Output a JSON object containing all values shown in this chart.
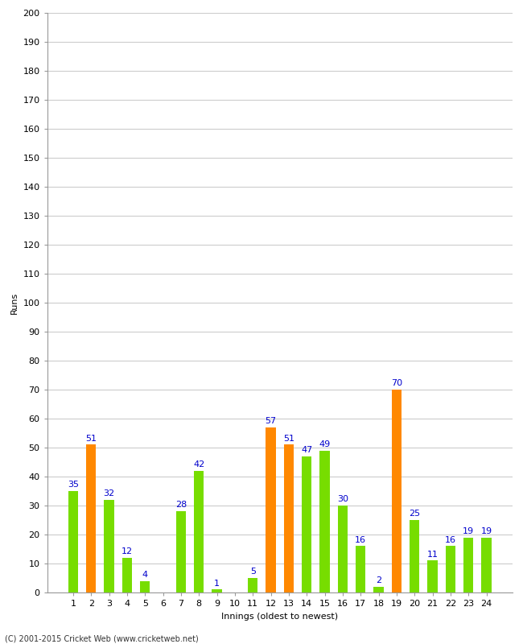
{
  "xlabel": "Innings (oldest to newest)",
  "ylabel": "Runs",
  "footer": "(C) 2001-2015 Cricket Web (www.cricketweb.net)",
  "ylim": [
    0,
    200
  ],
  "yticks": [
    0,
    10,
    20,
    30,
    40,
    50,
    60,
    70,
    80,
    90,
    100,
    110,
    120,
    130,
    140,
    150,
    160,
    170,
    180,
    190,
    200
  ],
  "innings": [
    1,
    2,
    3,
    4,
    5,
    6,
    7,
    8,
    9,
    10,
    11,
    12,
    13,
    14,
    15,
    16,
    17,
    18,
    19,
    20,
    21,
    22,
    23,
    24
  ],
  "values": [
    35,
    51,
    32,
    12,
    4,
    0,
    28,
    42,
    1,
    0,
    5,
    57,
    51,
    47,
    49,
    30,
    16,
    2,
    70,
    25,
    11,
    16,
    19,
    19
  ],
  "colors": [
    "#77dd00",
    "#ff8800",
    "#77dd00",
    "#77dd00",
    "#77dd00",
    "#77dd00",
    "#77dd00",
    "#77dd00",
    "#77dd00",
    "#77dd00",
    "#77dd00",
    "#ff8800",
    "#ff8800",
    "#77dd00",
    "#77dd00",
    "#77dd00",
    "#77dd00",
    "#77dd00",
    "#ff8800",
    "#77dd00",
    "#77dd00",
    "#77dd00",
    "#77dd00",
    "#77dd00"
  ],
  "label_color": "#0000cc",
  "background_color": "#ffffff",
  "grid_color": "#cccccc",
  "axis_fontsize": 8,
  "label_fontsize": 8,
  "footer_fontsize": 7,
  "bar_width": 0.55
}
